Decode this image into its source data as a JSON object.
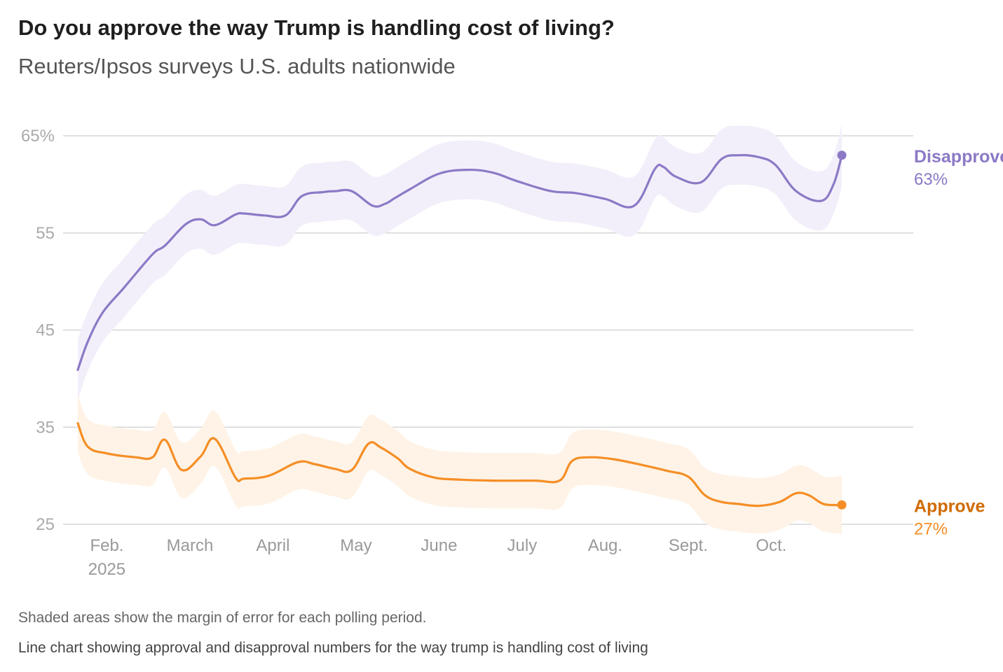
{
  "title": "Do you approve the way Trump is handling cost of living?",
  "subtitle": "Reuters/Ipsos surveys U.S. adults nationwide",
  "note": "Shaded areas show the margin of error for each polling period.",
  "description": "Line chart showing approval and disapproval numbers for the way trump is handling cost of living",
  "chart_data": {
    "type": "line",
    "ylim": [
      25,
      65
    ],
    "yticks": [
      {
        "value": 65,
        "label": "65%"
      },
      {
        "value": 55,
        "label": "55"
      },
      {
        "value": 45,
        "label": "45"
      },
      {
        "value": 35,
        "label": "35"
      },
      {
        "value": 25,
        "label": "25"
      }
    ],
    "xlim": [
      0,
      9.9
    ],
    "xticks": [
      {
        "value": 0.35,
        "label": "Feb.",
        "sublabel": "2025"
      },
      {
        "value": 1.35,
        "label": "March"
      },
      {
        "value": 2.35,
        "label": "April"
      },
      {
        "value": 3.35,
        "label": "May"
      },
      {
        "value": 4.35,
        "label": "June"
      },
      {
        "value": 5.35,
        "label": "July"
      },
      {
        "value": 6.35,
        "label": "Aug."
      },
      {
        "value": 7.35,
        "label": "Sept."
      },
      {
        "value": 8.35,
        "label": "Oct."
      }
    ],
    "grid": true,
    "series": [
      {
        "name": "Disapprove",
        "end_label": "63%",
        "color": "#8c79c6",
        "label_color": "#8c79c6",
        "band_color": "#f3effa",
        "x": [
          0,
          0.12,
          0.3,
          0.55,
          0.9,
          1.05,
          1.3,
          1.48,
          1.65,
          1.9,
          2.0,
          2.25,
          2.5,
          2.7,
          2.95,
          3.1,
          3.3,
          3.55,
          3.7,
          3.82,
          4.0,
          4.35,
          4.7,
          5.0,
          5.3,
          5.7,
          6.0,
          6.35,
          6.7,
          6.95,
          7.05,
          7.2,
          7.5,
          7.75,
          7.95,
          8.2,
          8.4,
          8.65,
          8.95,
          9.1,
          9.2
        ],
        "y": [
          40.9,
          43.8,
          46.8,
          49.3,
          52.8,
          53.7,
          55.9,
          56.4,
          55.8,
          56.9,
          57.0,
          56.8,
          56.8,
          58.8,
          59.2,
          59.3,
          59.3,
          57.8,
          58.0,
          58.6,
          59.5,
          61.1,
          61.5,
          61.2,
          60.3,
          59.3,
          59.1,
          58.5,
          57.8,
          61.6,
          61.8,
          60.8,
          60.2,
          62.6,
          63.0,
          62.8,
          62.0,
          59.3,
          58.3,
          60.0,
          63.0
        ],
        "band_width": 3.2
      },
      {
        "name": "Approve",
        "end_label": "27%",
        "color": "#f58e26",
        "label_color": "#d06b00",
        "band_color": "#fef3e6",
        "x": [
          0,
          0.12,
          0.35,
          0.7,
          0.9,
          1.05,
          1.25,
          1.48,
          1.65,
          1.9,
          2.0,
          2.3,
          2.65,
          2.85,
          3.1,
          3.3,
          3.5,
          3.65,
          3.85,
          4.0,
          4.3,
          4.6,
          5.0,
          5.5,
          5.8,
          5.95,
          6.15,
          6.45,
          6.8,
          7.1,
          7.35,
          7.55,
          7.75,
          7.95,
          8.2,
          8.45,
          8.65,
          8.8,
          8.95,
          9.05,
          9.2
        ],
        "y": [
          35.4,
          33.0,
          32.3,
          31.9,
          31.9,
          33.7,
          30.6,
          32.0,
          33.8,
          29.8,
          29.7,
          30.0,
          31.4,
          31.2,
          30.7,
          30.6,
          33.3,
          32.9,
          31.8,
          30.7,
          29.8,
          29.6,
          29.5,
          29.5,
          29.5,
          31.5,
          31.9,
          31.7,
          31.1,
          30.5,
          29.9,
          28.0,
          27.3,
          27.1,
          26.9,
          27.3,
          28.2,
          28.0,
          27.2,
          27.0,
          27.0
        ],
        "band_width": 3.0
      }
    ]
  }
}
